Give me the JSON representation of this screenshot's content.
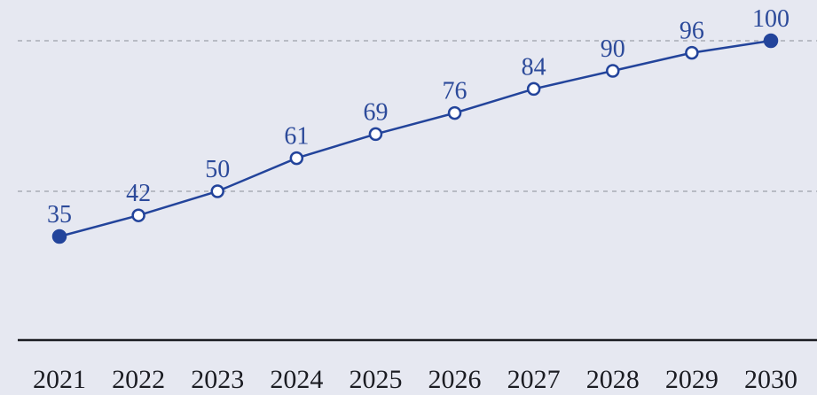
{
  "chart_data": {
    "type": "line",
    "title": "",
    "xlabel": "",
    "ylabel": "",
    "categories": [
      "2021",
      "2022",
      "2023",
      "2024",
      "2025",
      "2026",
      "2027",
      "2028",
      "2029",
      "2030"
    ],
    "series": [
      {
        "values": [
          35,
          42,
          50,
          61,
          69,
          76,
          84,
          90,
          96,
          100
        ],
        "filled_points": [
          0,
          9
        ]
      }
    ],
    "ylim": [
      15,
      106
    ],
    "gridlines_y": [
      50,
      100
    ],
    "grid": "dashed horizontal",
    "legend": "none",
    "colors": {
      "background": "#e6e8f1",
      "line": "#23449b",
      "label": "#2c4a9a",
      "axis": "#1b1c22",
      "grid": "#a9acb6"
    }
  }
}
